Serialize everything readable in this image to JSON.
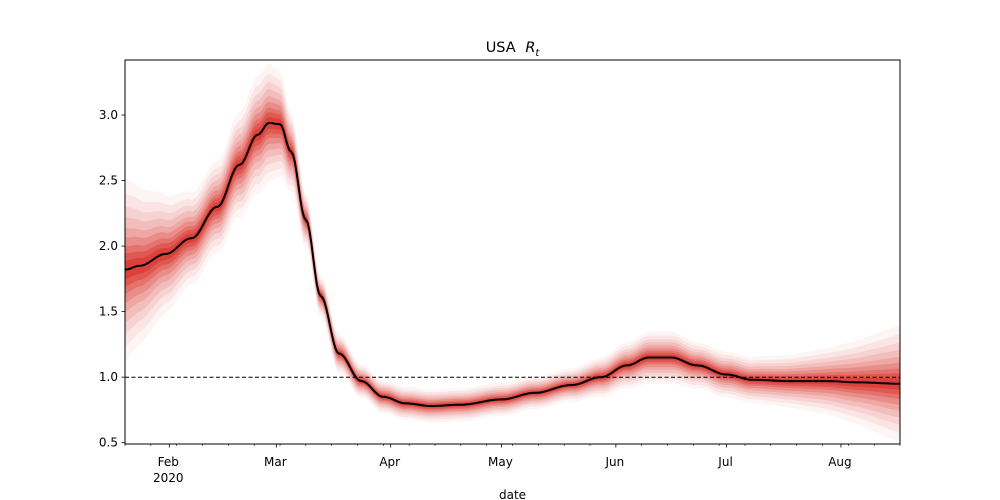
{
  "chart_data": {
    "type": "line",
    "title": "USA",
    "title_math_symbol": "R",
    "title_math_subscript": "t",
    "xlabel": "date",
    "ylabel": "",
    "x_start": "2020-01-20",
    "x_end": "2020-08-17",
    "ylim": [
      0.49,
      3.42
    ],
    "grid": false,
    "legend": "none",
    "x_major_ticks": [
      {
        "date": "2020-02-01",
        "label": "Feb",
        "sublabel": "2020"
      },
      {
        "date": "2020-03-01",
        "label": "Mar",
        "sublabel": ""
      },
      {
        "date": "2020-04-01",
        "label": "Apr",
        "sublabel": ""
      },
      {
        "date": "2020-05-01",
        "label": "May",
        "sublabel": ""
      },
      {
        "date": "2020-06-01",
        "label": "Jun",
        "sublabel": ""
      },
      {
        "date": "2020-07-01",
        "label": "Jul",
        "sublabel": ""
      },
      {
        "date": "2020-08-01",
        "label": "Aug",
        "sublabel": ""
      }
    ],
    "y_ticks": [
      {
        "value": 0.5,
        "label": "0.5"
      },
      {
        "value": 1.0,
        "label": "1.0"
      },
      {
        "value": 1.5,
        "label": "1.5"
      },
      {
        "value": 2.0,
        "label": "2.0"
      },
      {
        "value": 2.5,
        "label": "2.5"
      },
      {
        "value": 3.0,
        "label": "3.0"
      }
    ],
    "reference_line": {
      "y": 1.0,
      "style": "dashed",
      "color": "#000000"
    },
    "median_color": "#000000",
    "band_color": "#d7261e",
    "series": [
      {
        "points": [
          {
            "date": "2020-01-20",
            "y": 1.82,
            "spread": 0.14
          },
          {
            "date": "2020-01-24",
            "y": 1.85,
            "spread": 0.12
          },
          {
            "date": "2020-01-31",
            "y": 1.94,
            "spread": 0.09
          },
          {
            "date": "2020-02-07",
            "y": 2.06,
            "spread": 0.07
          },
          {
            "date": "2020-02-14",
            "y": 2.3,
            "spread": 0.07
          },
          {
            "date": "2020-02-20",
            "y": 2.62,
            "spread": 0.08
          },
          {
            "date": "2020-02-25",
            "y": 2.85,
            "spread": 0.09
          },
          {
            "date": "2020-02-28",
            "y": 2.94,
            "spread": 0.09
          },
          {
            "date": "2020-03-02",
            "y": 2.93,
            "spread": 0.08
          },
          {
            "date": "2020-03-05",
            "y": 2.72,
            "spread": 0.06
          },
          {
            "date": "2020-03-09",
            "y": 2.2,
            "spread": 0.04
          },
          {
            "date": "2020-03-13",
            "y": 1.62,
            "spread": 0.03
          },
          {
            "date": "2020-03-18",
            "y": 1.18,
            "spread": 0.03
          },
          {
            "date": "2020-03-24",
            "y": 0.97,
            "spread": 0.025
          },
          {
            "date": "2020-03-30",
            "y": 0.85,
            "spread": 0.025
          },
          {
            "date": "2020-04-05",
            "y": 0.8,
            "spread": 0.025
          },
          {
            "date": "2020-04-12",
            "y": 0.78,
            "spread": 0.025
          },
          {
            "date": "2020-04-20",
            "y": 0.79,
            "spread": 0.025
          },
          {
            "date": "2020-05-01",
            "y": 0.83,
            "spread": 0.025
          },
          {
            "date": "2020-05-10",
            "y": 0.88,
            "spread": 0.025
          },
          {
            "date": "2020-05-20",
            "y": 0.94,
            "spread": 0.025
          },
          {
            "date": "2020-05-28",
            "y": 1.0,
            "spread": 0.03
          },
          {
            "date": "2020-06-04",
            "y": 1.09,
            "spread": 0.035
          },
          {
            "date": "2020-06-10",
            "y": 1.15,
            "spread": 0.04
          },
          {
            "date": "2020-06-16",
            "y": 1.15,
            "spread": 0.04
          },
          {
            "date": "2020-06-23",
            "y": 1.09,
            "spread": 0.035
          },
          {
            "date": "2020-07-01",
            "y": 1.02,
            "spread": 0.035
          },
          {
            "date": "2020-07-08",
            "y": 0.98,
            "spread": 0.035
          },
          {
            "date": "2020-07-18",
            "y": 0.97,
            "spread": 0.04
          },
          {
            "date": "2020-07-28",
            "y": 0.97,
            "spread": 0.05
          },
          {
            "date": "2020-08-06",
            "y": 0.96,
            "spread": 0.065
          },
          {
            "date": "2020-08-17",
            "y": 0.95,
            "spread": 0.09
          }
        ]
      }
    ]
  }
}
